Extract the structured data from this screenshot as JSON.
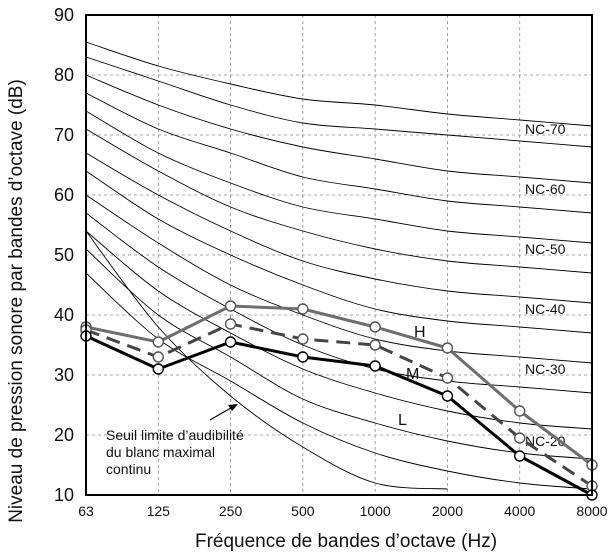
{
  "chart_data": {
    "type": "line",
    "xlabel": "Fréquence de bandes d’octave (Hz)",
    "ylabel": "Niveau de pression sonore par bandes d’octave (dB)",
    "x_ticks": [
      "63",
      "125",
      "250",
      "500",
      "1000",
      "2000",
      "4000",
      "8000"
    ],
    "y_ticks": [
      10,
      20,
      30,
      40,
      50,
      60,
      70,
      80,
      90
    ],
    "ylim": [
      10,
      90
    ],
    "x_scale": "log2 (octave bands)",
    "grid": true,
    "nc_curves": [
      {
        "name": "NC-15",
        "values": [
          47,
          36,
          29,
          22,
          17,
          14,
          12,
          11
        ]
      },
      {
        "name": "NC-20",
        "values": [
          51,
          40,
          33,
          26,
          22,
          19,
          17,
          16
        ]
      },
      {
        "name": "NC-25",
        "values": [
          54,
          44,
          37,
          31,
          27,
          24,
          22,
          21
        ]
      },
      {
        "name": "NC-30",
        "values": [
          57,
          48,
          41,
          35,
          31,
          29,
          28,
          27
        ]
      },
      {
        "name": "NC-35",
        "values": [
          60,
          52,
          45,
          40,
          36,
          34,
          33,
          32
        ]
      },
      {
        "name": "NC-40",
        "values": [
          64,
          56,
          50,
          45,
          41,
          39,
          38,
          37
        ]
      },
      {
        "name": "NC-45",
        "values": [
          67,
          60,
          54,
          49,
          46,
          44,
          43,
          42
        ]
      },
      {
        "name": "NC-50",
        "values": [
          71,
          64,
          58,
          54,
          51,
          49,
          48,
          47
        ]
      },
      {
        "name": "NC-55",
        "values": [
          74,
          67,
          62,
          58,
          56,
          54,
          53,
          52
        ]
      },
      {
        "name": "NC-60",
        "values": [
          77,
          71,
          67,
          63,
          61,
          59,
          58,
          57
        ]
      },
      {
        "name": "NC-65",
        "values": [
          80,
          75,
          71,
          68,
          66,
          64,
          63,
          62
        ]
      },
      {
        "name": "NC-70",
        "values": [
          83,
          79,
          75,
          72,
          71,
          70,
          69,
          68
        ]
      },
      {
        "name": "NC-75",
        "values": [
          85.5,
          81.5,
          78.5,
          76,
          75,
          73.5,
          72.5,
          71.5
        ]
      }
    ],
    "nc_labels": [
      {
        "text": "NC-70",
        "value": 71
      },
      {
        "text": "NC-60",
        "value": 61
      },
      {
        "text": "NC-50",
        "value": 51
      },
      {
        "text": "NC-40",
        "value": 41
      },
      {
        "text": "NC-30",
        "value": 31
      },
      {
        "text": "NC-20",
        "value": 19
      }
    ],
    "hearing_threshold": {
      "values": [
        54,
        38,
        26.5,
        18,
        12,
        11,
        null,
        null
      ]
    },
    "series": [
      {
        "name": "H",
        "color": "#6e6e6e",
        "style": "solid",
        "values": [
          38,
          35.5,
          41.5,
          41,
          38,
          34.5,
          24,
          15
        ]
      },
      {
        "name": "M",
        "color": "#444444",
        "style": "dashed",
        "values": [
          37.5,
          33,
          38.5,
          36,
          35,
          29.5,
          19.5,
          11.5
        ]
      },
      {
        "name": "L",
        "color": "#000000",
        "style": "solid",
        "values": [
          36.5,
          31,
          35.5,
          33,
          31.5,
          26.5,
          16.5,
          10
        ]
      }
    ],
    "annotation": {
      "lines": [
        "Seuil limite d’audibilité",
        "du blanc maximal",
        "continu"
      ]
    }
  }
}
